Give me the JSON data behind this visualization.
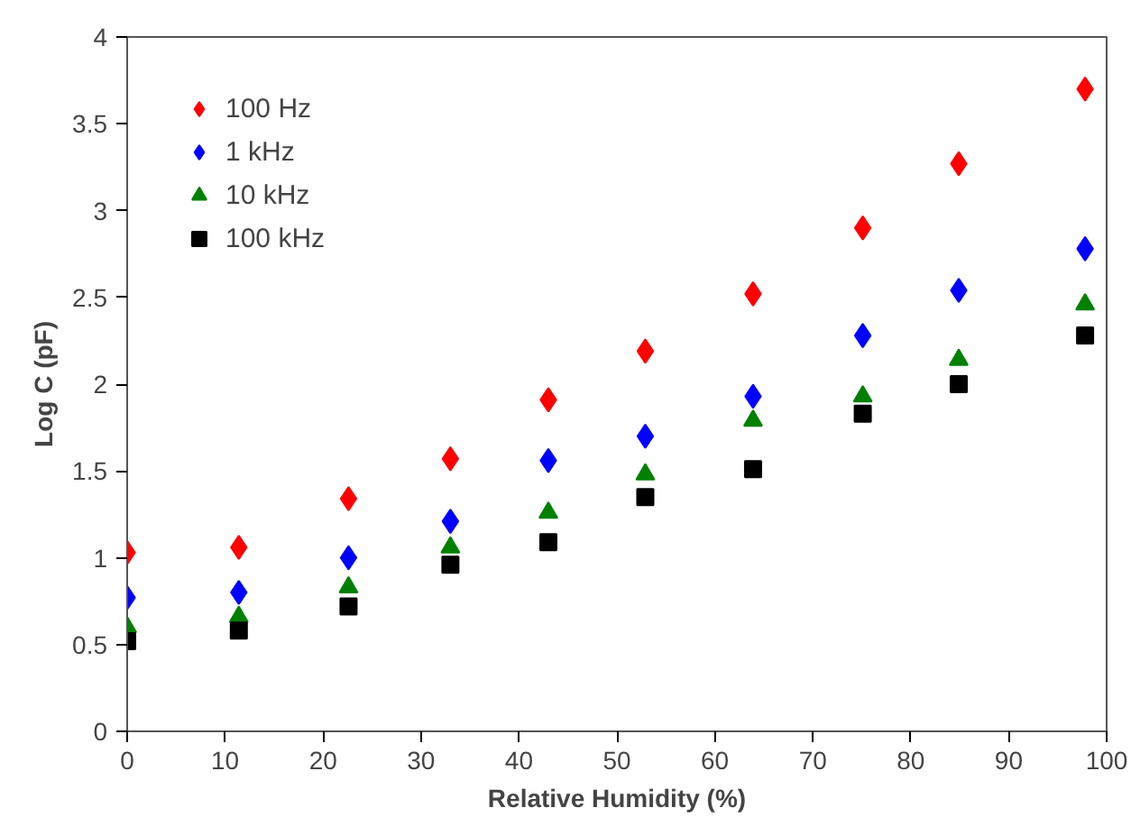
{
  "chart_data": {
    "type": "scatter",
    "xlabel": "Relative Humidity (%)",
    "ylabel": "Log C (pF)",
    "x": [
      0,
      11.4,
      22.6,
      33,
      43,
      52.9,
      63.9,
      75.1,
      84.9,
      97.8
    ],
    "series": [
      {
        "name": "100 Hz",
        "color": "#ff0000",
        "marker": "diamond",
        "values": [
          1.03,
          1.06,
          1.34,
          1.57,
          1.91,
          2.19,
          2.52,
          2.9,
          3.27,
          3.7
        ]
      },
      {
        "name": "1 kHz",
        "color": "#0000ff",
        "marker": "diamond",
        "values": [
          0.77,
          0.8,
          1.0,
          1.21,
          1.56,
          1.7,
          1.93,
          2.28,
          2.54,
          2.78
        ]
      },
      {
        "name": "10 kHz",
        "color": "#008000",
        "marker": "triangle",
        "values": [
          0.6,
          0.66,
          0.83,
          1.06,
          1.26,
          1.48,
          1.79,
          1.93,
          2.14,
          2.46
        ]
      },
      {
        "name": "100 kHz",
        "color": "#000000",
        "marker": "square",
        "values": [
          0.52,
          0.58,
          0.72,
          0.96,
          1.09,
          1.35,
          1.51,
          1.83,
          2.0,
          2.28
        ]
      }
    ],
    "xlim": [
      0,
      100
    ],
    "xticks": [
      0,
      10,
      20,
      30,
      40,
      50,
      60,
      70,
      80,
      90,
      100
    ],
    "ylim": [
      0,
      4
    ],
    "yticks": [
      0,
      0.5,
      1,
      1.5,
      2,
      2.5,
      3,
      3.5,
      4
    ],
    "grid": false,
    "legend": "top left"
  }
}
